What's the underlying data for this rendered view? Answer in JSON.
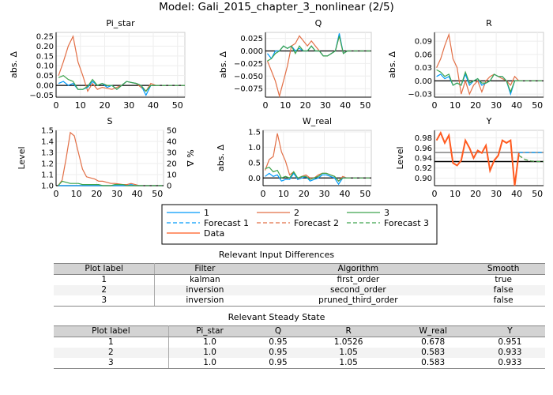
{
  "title": "Model: Gali_2015_chapter_3_nonlinear  (2/5)",
  "colors": {
    "1": "#009af9",
    "2": "#e26f46",
    "3": "#3da44d",
    "data": "#ff5a1f",
    "steady_1": "#808080",
    "steady_23": "#000000"
  },
  "chart_data": [
    {
      "type": "line",
      "title": "Pi_star",
      "ylabel": "abs. Δ",
      "xlim": [
        0,
        53
      ],
      "ylim": [
        -0.06,
        0.27
      ],
      "xticks": [
        0,
        10,
        20,
        30,
        40,
        50
      ],
      "yticks": [
        -0.05,
        0.0,
        0.05,
        0.1,
        0.15,
        0.2,
        0.25
      ],
      "ytick_labels": [
        "−0.05",
        "0.00",
        "0.05",
        "0.10",
        "0.15",
        "0.20",
        "0.25"
      ],
      "hline": 0,
      "x": [
        1,
        3,
        5,
        7,
        9,
        11,
        13,
        15,
        17,
        19,
        21,
        23,
        25,
        27,
        29,
        31,
        33,
        35,
        37,
        39,
        41
      ],
      "series": [
        {
          "name": "1",
          "values": [
            0.01,
            0.02,
            0.0,
            0.01,
            -0.02,
            -0.02,
            -0.01,
            0.02,
            0.0,
            0.01,
            -0.01,
            0.0,
            -0.02,
            0.0,
            0.02,
            0.015,
            0.01,
            0.0,
            -0.05,
            0.0,
            0.0
          ]
        },
        {
          "name": "2",
          "values": [
            0.05,
            0.12,
            0.2,
            0.25,
            0.12,
            0.05,
            -0.03,
            0.01,
            -0.02,
            -0.01,
            -0.015,
            -0.02,
            -0.01,
            0.0,
            0.02,
            0.015,
            0.01,
            -0.01,
            -0.03,
            0.01,
            0.0
          ]
        },
        {
          "name": "3",
          "values": [
            0.04,
            0.05,
            0.03,
            0.02,
            -0.02,
            -0.02,
            -0.005,
            0.03,
            0.0,
            0.01,
            0.0,
            0.0,
            -0.02,
            0.0,
            0.02,
            0.015,
            0.01,
            0.0,
            -0.03,
            0.0,
            0.0
          ]
        }
      ],
      "forecast_x": [
        41,
        44,
        47,
        50,
        53
      ],
      "forecasts": [
        {
          "name": "Forecast 1",
          "values": [
            0,
            0,
            0,
            0,
            0
          ]
        },
        {
          "name": "Forecast 2",
          "values": [
            0,
            0,
            0,
            0,
            0
          ]
        },
        {
          "name": "Forecast 3",
          "values": [
            0,
            0,
            0,
            0,
            0
          ]
        }
      ]
    },
    {
      "type": "line",
      "title": "Q",
      "ylabel": "abs. Δ",
      "xlim": [
        0,
        53
      ],
      "ylim": [
        -0.092,
        0.037
      ],
      "xticks": [
        0,
        10,
        20,
        30,
        40,
        50
      ],
      "yticks": [
        -0.075,
        -0.05,
        -0.025,
        0.0,
        0.025
      ],
      "ytick_labels": [
        "−0.075",
        "−0.050",
        "−0.025",
        "0.000",
        "0.025"
      ],
      "hline": 0,
      "x": [
        1,
        3,
        5,
        7,
        9,
        11,
        13,
        15,
        17,
        19,
        21,
        23,
        25,
        27,
        29,
        31,
        33,
        35,
        37,
        39,
        41
      ],
      "series": [
        {
          "name": "1",
          "values": [
            -0.005,
            -0.015,
            0.0,
            0.0,
            0.01,
            0.005,
            0.01,
            0.0,
            0.005,
            0.0,
            0.0,
            0.01,
            0.0,
            0.0,
            -0.01,
            -0.01,
            -0.005,
            0.0,
            0.035,
            -0.005,
            0.0
          ]
        },
        {
          "name": "2",
          "values": [
            -0.02,
            -0.04,
            -0.06,
            -0.09,
            -0.06,
            -0.03,
            0.01,
            0.015,
            0.03,
            0.02,
            0.01,
            0.02,
            0.01,
            0.0,
            -0.01,
            -0.01,
            -0.005,
            0.0,
            0.03,
            -0.005,
            0.0
          ]
        },
        {
          "name": "3",
          "values": [
            -0.02,
            -0.015,
            -0.005,
            0.0,
            0.01,
            0.005,
            0.01,
            -0.005,
            0.01,
            0.0,
            0.0,
            0.01,
            0.0,
            0.0,
            -0.01,
            -0.01,
            -0.005,
            0.0,
            0.03,
            -0.005,
            0.0
          ]
        }
      ],
      "forecast_x": [
        41,
        44,
        47,
        50,
        53
      ],
      "forecasts": [
        {
          "name": "Forecast 1",
          "values": [
            0,
            0,
            0,
            0,
            0
          ]
        },
        {
          "name": "Forecast 2",
          "values": [
            0,
            0,
            0,
            0,
            0
          ]
        },
        {
          "name": "Forecast 3",
          "values": [
            0,
            0,
            0,
            0,
            0
          ]
        }
      ]
    },
    {
      "type": "line",
      "title": "R",
      "ylabel": "abs. Δ",
      "xlim": [
        0,
        53
      ],
      "ylim": [
        -0.037,
        0.11
      ],
      "xticks": [
        0,
        10,
        20,
        30,
        40,
        50
      ],
      "yticks": [
        -0.03,
        0.0,
        0.03,
        0.06,
        0.09
      ],
      "ytick_labels": [
        "−0.03",
        "0.00",
        "0.03",
        "0.06",
        "0.09"
      ],
      "hline": 0,
      "x": [
        1,
        3,
        5,
        7,
        9,
        11,
        13,
        15,
        17,
        19,
        21,
        23,
        25,
        27,
        29,
        31,
        33,
        35,
        37,
        39,
        41
      ],
      "series": [
        {
          "name": "1",
          "values": [
            0.01,
            0.015,
            0.005,
            0.01,
            -0.01,
            -0.005,
            -0.01,
            0.015,
            -0.01,
            0.0,
            0.005,
            -0.01,
            -0.005,
            0.0,
            0.015,
            0.01,
            0.01,
            0.0,
            -0.03,
            0.0,
            0.0
          ]
        },
        {
          "name": "2",
          "values": [
            0.03,
            0.05,
            0.08,
            0.105,
            0.05,
            0.03,
            -0.03,
            0.0,
            -0.03,
            -0.01,
            0.0,
            -0.025,
            0.0,
            0.01,
            0.015,
            0.01,
            0.005,
            0.0,
            -0.01,
            0.01,
            0.0
          ]
        },
        {
          "name": "3",
          "values": [
            0.025,
            0.02,
            0.01,
            0.015,
            -0.01,
            -0.005,
            -0.01,
            0.02,
            -0.005,
            0.0,
            0.005,
            -0.005,
            -0.005,
            0.0,
            0.015,
            0.01,
            0.01,
            0.0,
            -0.025,
            0.0,
            0.0
          ]
        }
      ],
      "forecast_x": [
        41,
        44,
        47,
        50,
        53
      ],
      "forecasts": [
        {
          "name": "Forecast 1",
          "values": [
            0,
            0,
            0,
            0,
            0
          ]
        },
        {
          "name": "Forecast 2",
          "values": [
            0,
            0,
            0,
            0,
            0
          ]
        },
        {
          "name": "Forecast 3",
          "values": [
            0,
            0,
            0,
            0,
            0
          ]
        }
      ]
    },
    {
      "type": "line",
      "title": "S",
      "ylabel": "Level",
      "ylabel_right": "% Δ",
      "xlim": [
        0,
        53
      ],
      "ylim": [
        1.0,
        1.5
      ],
      "xticks": [
        0,
        10,
        20,
        30,
        40,
        50
      ],
      "yticks": [
        1.0,
        1.1,
        1.2,
        1.3,
        1.4,
        1.5
      ],
      "ytick_labels": [
        "1.0",
        "1.1",
        "1.2",
        "1.3",
        "1.4",
        "1.5"
      ],
      "yticks_right": [
        "0",
        "10",
        "20",
        "30",
        "40",
        "50"
      ],
      "hline": 1.0,
      "x": [
        1,
        3,
        5,
        7,
        9,
        11,
        13,
        15,
        17,
        19,
        21,
        23,
        25,
        27,
        29,
        31,
        33,
        35,
        37,
        39,
        41
      ],
      "series": [
        {
          "name": "1",
          "values": [
            1.0,
            1.0,
            1.0,
            1.0,
            1.0,
            1.0,
            1.0,
            1.0,
            1.0,
            1.0,
            1.0,
            1.0,
            1.0,
            1.0,
            1.0,
            1.0,
            1.0,
            1.0,
            1.01,
            1.0,
            1.0
          ]
        },
        {
          "name": "2",
          "values": [
            1.0,
            1.05,
            1.25,
            1.48,
            1.45,
            1.3,
            1.15,
            1.08,
            1.07,
            1.06,
            1.04,
            1.04,
            1.03,
            1.02,
            1.02,
            1.015,
            1.01,
            1.01,
            1.02,
            1.01,
            1.0
          ]
        },
        {
          "name": "3",
          "values": [
            1.0,
            1.04,
            1.03,
            1.02,
            1.02,
            1.02,
            1.01,
            1.01,
            1.01,
            1.01,
            1.01,
            1.0,
            1.0,
            1.0,
            1.01,
            1.01,
            1.01,
            1.0,
            1.0,
            1.0,
            1.0
          ]
        }
      ],
      "forecast_x": [
        41,
        44,
        47,
        50,
        53
      ],
      "forecasts": [
        {
          "name": "Forecast 1",
          "values": [
            1,
            1,
            1,
            1,
            1
          ]
        },
        {
          "name": "Forecast 2",
          "values": [
            1,
            1,
            1,
            1,
            1
          ]
        },
        {
          "name": "Forecast 3",
          "values": [
            1,
            1,
            1,
            1,
            1
          ]
        }
      ]
    },
    {
      "type": "line",
      "title": "W_real",
      "ylabel": "abs. Δ",
      "xlim": [
        0,
        53
      ],
      "ylim": [
        -0.25,
        1.55
      ],
      "xticks": [
        0,
        10,
        20,
        30,
        40,
        50
      ],
      "yticks": [
        0.0,
        0.5,
        1.0,
        1.5
      ],
      "ytick_labels": [
        "0.0",
        "0.5",
        "1.0",
        "1.5"
      ],
      "hline": 0,
      "x": [
        1,
        3,
        5,
        7,
        9,
        11,
        13,
        15,
        17,
        19,
        21,
        23,
        25,
        27,
        29,
        31,
        33,
        35,
        37,
        39,
        41
      ],
      "series": [
        {
          "name": "1",
          "values": [
            0.05,
            0.15,
            0.05,
            0.1,
            -0.1,
            -0.05,
            -0.05,
            0.15,
            -0.05,
            0.0,
            0.05,
            -0.1,
            -0.05,
            0.0,
            0.1,
            0.1,
            0.05,
            0.0,
            -0.2,
            0.0,
            0.0
          ]
        },
        {
          "name": "2",
          "values": [
            0.25,
            0.6,
            0.7,
            1.45,
            0.85,
            0.55,
            0.1,
            0.2,
            -0.05,
            0.05,
            0.1,
            0.0,
            0.0,
            0.1,
            0.15,
            0.15,
            0.1,
            0.05,
            -0.1,
            0.05,
            0.0
          ]
        },
        {
          "name": "3",
          "values": [
            0.3,
            0.35,
            0.2,
            0.25,
            0.0,
            0.05,
            0.0,
            0.2,
            0.0,
            0.05,
            0.05,
            -0.05,
            0.0,
            0.05,
            0.15,
            0.15,
            0.1,
            0.05,
            -0.1,
            0.0,
            0.0
          ]
        }
      ],
      "forecast_x": [
        41,
        44,
        47,
        50,
        53
      ],
      "forecasts": [
        {
          "name": "Forecast 1",
          "values": [
            0,
            0,
            0,
            0,
            0
          ]
        },
        {
          "name": "Forecast 2",
          "values": [
            0,
            0,
            0,
            0,
            0
          ]
        },
        {
          "name": "Forecast 3",
          "values": [
            0,
            0,
            0,
            0,
            0
          ]
        }
      ]
    },
    {
      "type": "line",
      "title": "Y",
      "ylabel": "Level",
      "xlim": [
        0,
        53
      ],
      "ylim": [
        0.885,
        0.995
      ],
      "xticks": [
        0,
        10,
        20,
        30,
        40,
        50
      ],
      "yticks": [
        0.9,
        0.92,
        0.94,
        0.96,
        0.98
      ],
      "ytick_labels": [
        "0.90",
        "0.92",
        "0.94",
        "0.96",
        "0.98"
      ],
      "steady_lines": [
        0.951,
        0.933
      ],
      "x": [
        1,
        3,
        5,
        7,
        9,
        11,
        13,
        15,
        17,
        19,
        21,
        23,
        25,
        27,
        29,
        31,
        33,
        35,
        37,
        39,
        41
      ],
      "data": {
        "name": "Data",
        "values": [
          0.975,
          0.99,
          0.97,
          0.985,
          0.93,
          0.925,
          0.935,
          0.975,
          0.96,
          0.94,
          0.955,
          0.95,
          0.965,
          0.915,
          0.935,
          0.945,
          0.975,
          0.97,
          0.975,
          0.885,
          0.95
        ]
      },
      "series": [],
      "forecast_x": [
        41,
        44,
        47,
        50,
        53
      ],
      "forecasts": [
        {
          "name": "Forecast 1",
          "values": [
            0.951,
            0.951,
            0.951,
            0.951,
            0.951
          ]
        },
        {
          "name": "Forecast 2",
          "values": [
            0.945,
            0.937,
            0.934,
            0.933,
            0.933
          ]
        },
        {
          "name": "Forecast 3",
          "values": [
            0.945,
            0.937,
            0.934,
            0.933,
            0.933
          ]
        }
      ]
    }
  ],
  "legend": {
    "items": [
      {
        "label": "1",
        "key": "1",
        "dash": false
      },
      {
        "label": "2",
        "key": "2",
        "dash": false
      },
      {
        "label": "3",
        "key": "3",
        "dash": false
      },
      {
        "label": "Forecast 1",
        "key": "1",
        "dash": true
      },
      {
        "label": "Forecast 2",
        "key": "2",
        "dash": true
      },
      {
        "label": "Forecast 3",
        "key": "3",
        "dash": true
      },
      {
        "label": "Data",
        "key": "data",
        "dash": false
      }
    ]
  },
  "input_diff": {
    "title": "Relevant Input Differences",
    "headers": [
      "Plot label",
      "Filter",
      "Algorithm",
      "Smooth"
    ],
    "rows": [
      [
        "1",
        "kalman",
        "first_order",
        "true"
      ],
      [
        "2",
        "inversion",
        "second_order",
        "false"
      ],
      [
        "3",
        "inversion",
        "pruned_third_order",
        "false"
      ]
    ]
  },
  "steady_state": {
    "title": "Relevant Steady State",
    "headers": [
      "Plot label",
      "Pi_star",
      "Q",
      "R",
      "W_real",
      "Y"
    ],
    "rows": [
      [
        "1",
        "1.0",
        "0.95",
        "1.0526",
        "0.678",
        "0.951"
      ],
      [
        "2",
        "1.0",
        "0.95",
        "1.05",
        "0.583",
        "0.933"
      ],
      [
        "3",
        "1.0",
        "0.95",
        "1.05",
        "0.583",
        "0.933"
      ]
    ]
  }
}
